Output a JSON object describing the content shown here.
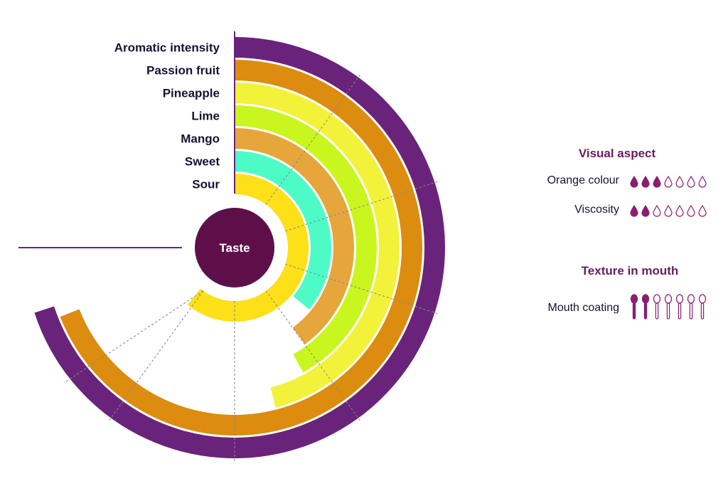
{
  "chart_data": {
    "type": "radial-bar",
    "scale_max": 10,
    "center_label": "Taste",
    "series": [
      {
        "label": "Aromatic intensity",
        "value": 7.0,
        "color": "#6a237a"
      },
      {
        "label": "Passion fruit",
        "value": 6.9,
        "color": "#dc8c0e"
      },
      {
        "label": "Pineapple",
        "value": 4.6,
        "color": "#f2f23a"
      },
      {
        "label": "Lime",
        "value": 4.2,
        "color": "#c9f61e"
      },
      {
        "label": "Mango",
        "value": 4.0,
        "color": "#e6a63c"
      },
      {
        "label": "Sweet",
        "value": 3.6,
        "color": "#4dfbc6"
      },
      {
        "label": "Sour",
        "value": 6.1,
        "color": "#fde018"
      }
    ]
  },
  "visual_aspect": {
    "title": "Visual aspect",
    "rows": [
      {
        "label": "Orange colour",
        "filled": 3,
        "total": 7
      },
      {
        "label": "Viscosity",
        "filled": 2,
        "total": 7
      }
    ]
  },
  "texture": {
    "title": "Texture in mouth",
    "rows": [
      {
        "label": "Mouth coating",
        "filled": 2,
        "total": 7
      }
    ]
  },
  "colors": {
    "accent": "#5e0f4a",
    "icon": "#8a1f6f"
  }
}
